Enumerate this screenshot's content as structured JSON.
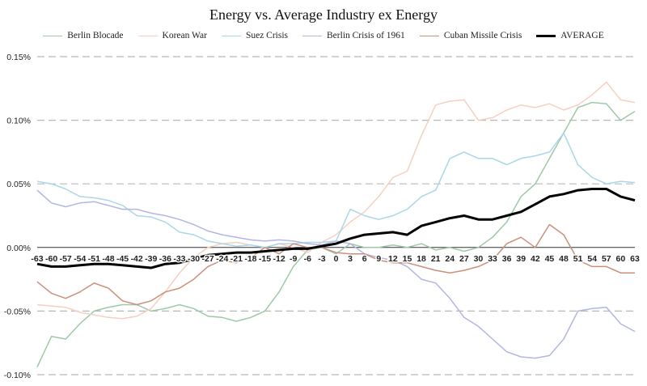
{
  "chart_data": {
    "type": "line",
    "title": "Energy vs. Average Industry ex Energy",
    "xlabel": "",
    "ylabel": "",
    "xlim": [
      -63,
      63
    ],
    "ylim": [
      -0.1,
      0.15
    ],
    "x_ticks": [
      -63,
      -60,
      -57,
      -54,
      -51,
      -48,
      -45,
      -42,
      -39,
      -36,
      -33,
      -30,
      -27,
      -24,
      -21,
      -18,
      -15,
      -12,
      -9,
      -6,
      -3,
      0,
      3,
      6,
      9,
      12,
      15,
      18,
      21,
      24,
      27,
      30,
      33,
      36,
      39,
      42,
      45,
      48,
      51,
      54,
      57,
      60,
      63
    ],
    "y_ticks": [
      -0.1,
      -0.05,
      0,
      0.05,
      0.1,
      0.15
    ],
    "y_tick_labels": [
      "-0.10%",
      "-0.05%",
      "0.00%",
      "0.05%",
      "0.10%",
      "0.15%"
    ],
    "grid": "horizontal dashed",
    "legend_position": "top",
    "series": [
      {
        "name": "Berlin Blocade",
        "color": "#9cc9a8",
        "width": 1.5,
        "x": [
          -63,
          -60,
          -57,
          -54,
          -51,
          -48,
          -45,
          -42,
          -39,
          -36,
          -33,
          -30,
          -27,
          -24,
          -21,
          -18,
          -15,
          -12,
          -9,
          -6,
          -3,
          0,
          3,
          6,
          9,
          12,
          15,
          18,
          21,
          24,
          27,
          30,
          33,
          36,
          39,
          42,
          45,
          48,
          51,
          54,
          57,
          60,
          63
        ],
        "y": [
          -0.094,
          -0.07,
          -0.072,
          -0.06,
          -0.05,
          -0.047,
          -0.045,
          -0.045,
          -0.05,
          -0.048,
          -0.045,
          -0.048,
          -0.054,
          -0.055,
          -0.058,
          -0.055,
          -0.05,
          -0.035,
          -0.015,
          -0.002,
          0.0,
          -0.005,
          0.003,
          0.0,
          0.0,
          0.002,
          0.0,
          0.003,
          -0.002,
          0.0,
          -0.003,
          0.0,
          0.008,
          0.02,
          0.04,
          0.05,
          0.07,
          0.09,
          0.11,
          0.114,
          0.113,
          0.1,
          0.107
        ]
      },
      {
        "name": "Korean War",
        "color": "#f7cfc0",
        "width": 1.5,
        "x": [
          -63,
          -60,
          -57,
          -54,
          -51,
          -48,
          -45,
          -42,
          -39,
          -36,
          -33,
          -30,
          -27,
          -24,
          -21,
          -18,
          -15,
          -12,
          -9,
          -6,
          -3,
          0,
          3,
          6,
          9,
          12,
          15,
          18,
          21,
          24,
          27,
          30,
          33,
          36,
          39,
          42,
          45,
          48,
          51,
          54,
          57,
          60,
          63
        ],
        "y": [
          -0.045,
          -0.046,
          -0.047,
          -0.051,
          -0.053,
          -0.055,
          -0.056,
          -0.054,
          -0.048,
          -0.035,
          -0.02,
          -0.008,
          0.0,
          0.003,
          0.004,
          0.002,
          0.0,
          0.003,
          0.0,
          -0.004,
          0.004,
          0.01,
          0.02,
          0.028,
          0.04,
          0.055,
          0.06,
          0.088,
          0.112,
          0.115,
          0.116,
          0.1,
          0.102,
          0.108,
          0.112,
          0.11,
          0.113,
          0.108,
          0.112,
          0.12,
          0.13,
          0.116,
          0.114
        ]
      },
      {
        "name": "Suez Crisis",
        "color": "#a9d7e8",
        "width": 1.5,
        "x": [
          -63,
          -60,
          -57,
          -54,
          -51,
          -48,
          -45,
          -42,
          -39,
          -36,
          -33,
          -30,
          -27,
          -24,
          -21,
          -18,
          -15,
          -12,
          -9,
          -6,
          -3,
          0,
          3,
          6,
          9,
          12,
          15,
          18,
          21,
          24,
          27,
          30,
          33,
          36,
          39,
          42,
          45,
          48,
          51,
          54,
          57,
          60,
          63
        ],
        "y": [
          0.052,
          0.05,
          0.046,
          0.04,
          0.039,
          0.037,
          0.033,
          0.025,
          0.024,
          0.02,
          0.012,
          0.01,
          0.005,
          0.003,
          0.001,
          0.002,
          0.0,
          0.003,
          0.003,
          0.004,
          0.004,
          0.005,
          0.03,
          0.025,
          0.022,
          0.025,
          0.03,
          0.04,
          0.045,
          0.07,
          0.075,
          0.07,
          0.07,
          0.065,
          0.07,
          0.072,
          0.075,
          0.09,
          0.065,
          0.055,
          0.05,
          0.052,
          0.051
        ]
      },
      {
        "name": "Berlin Crisis of 1961",
        "color": "#b3b5e3",
        "width": 1.5,
        "x": [
          -63,
          -60,
          -57,
          -54,
          -51,
          -48,
          -45,
          -42,
          -39,
          -36,
          -33,
          -30,
          -27,
          -24,
          -21,
          -18,
          -15,
          -12,
          -9,
          -6,
          -3,
          0,
          3,
          6,
          9,
          12,
          15,
          18,
          21,
          24,
          27,
          30,
          33,
          36,
          39,
          42,
          45,
          48,
          51,
          54,
          57,
          60,
          63
        ],
        "y": [
          0.045,
          0.035,
          0.032,
          0.035,
          0.036,
          0.033,
          0.03,
          0.03,
          0.027,
          0.025,
          0.022,
          0.018,
          0.013,
          0.01,
          0.008,
          0.006,
          0.005,
          0.006,
          0.005,
          0.003,
          0.002,
          0.005,
          0.003,
          -0.005,
          -0.008,
          -0.01,
          -0.015,
          -0.025,
          -0.028,
          -0.04,
          -0.055,
          -0.062,
          -0.072,
          -0.082,
          -0.086,
          -0.087,
          -0.085,
          -0.072,
          -0.05,
          -0.048,
          -0.047,
          -0.06,
          -0.066
        ]
      },
      {
        "name": "Cuban Missile Crisis",
        "color": "#c9907a",
        "width": 1.5,
        "x": [
          -63,
          -60,
          -57,
          -54,
          -51,
          -48,
          -45,
          -42,
          -39,
          -36,
          -33,
          -30,
          -27,
          -24,
          -21,
          -18,
          -15,
          -12,
          -9,
          -6,
          -3,
          0,
          3,
          6,
          9,
          12,
          15,
          18,
          21,
          24,
          27,
          30,
          33,
          36,
          39,
          42,
          45,
          48,
          51,
          54,
          57,
          60,
          63
        ],
        "y": [
          -0.027,
          -0.036,
          -0.04,
          -0.035,
          -0.028,
          -0.032,
          -0.042,
          -0.045,
          -0.042,
          -0.035,
          -0.032,
          -0.025,
          -0.015,
          -0.01,
          -0.012,
          -0.008,
          0.0,
          -0.005,
          0.003,
          0.0,
          0.0,
          -0.004,
          -0.005,
          -0.005,
          -0.01,
          -0.012,
          -0.012,
          -0.015,
          -0.018,
          -0.02,
          -0.018,
          -0.015,
          -0.01,
          0.003,
          0.008,
          0.0,
          0.018,
          0.01,
          -0.01,
          -0.015,
          -0.015,
          -0.02,
          -0.02
        ]
      },
      {
        "name": "AVERAGE",
        "color": "#000000",
        "width": 3,
        "x": [
          -63,
          -60,
          -57,
          -54,
          -51,
          -48,
          -45,
          -42,
          -39,
          -36,
          -33,
          -30,
          -27,
          -24,
          -21,
          -18,
          -15,
          -12,
          -9,
          -6,
          -3,
          0,
          3,
          6,
          9,
          12,
          15,
          18,
          21,
          24,
          27,
          30,
          33,
          36,
          39,
          42,
          45,
          48,
          51,
          54,
          57,
          60,
          63
        ],
        "y": [
          -0.013,
          -0.015,
          -0.015,
          -0.014,
          -0.013,
          -0.013,
          -0.014,
          -0.015,
          -0.016,
          -0.013,
          -0.012,
          -0.009,
          -0.006,
          -0.005,
          -0.004,
          -0.004,
          -0.003,
          -0.002,
          -0.001,
          -0.001,
          0.001,
          0.003,
          0.007,
          0.01,
          0.011,
          0.012,
          0.01,
          0.017,
          0.02,
          0.023,
          0.025,
          0.022,
          0.022,
          0.025,
          0.028,
          0.034,
          0.04,
          0.042,
          0.045,
          0.046,
          0.046,
          0.04,
          0.037
        ]
      }
    ]
  }
}
